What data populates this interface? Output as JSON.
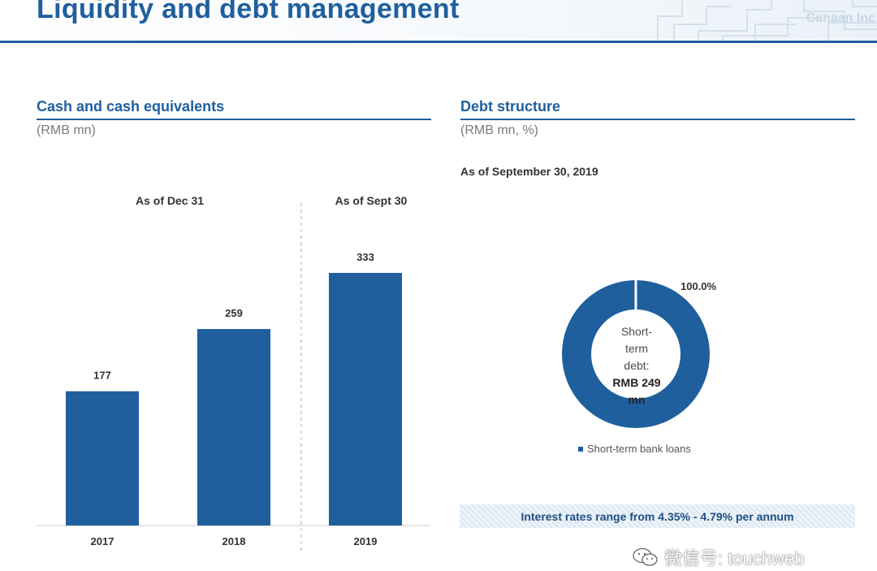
{
  "header": {
    "title": "Liquidity and debt management",
    "logo_text": "Canaan Inc",
    "accent_color": "#1f5f9e"
  },
  "left": {
    "title": "Cash and cash equivalents",
    "unit": "(RMB mn)",
    "group_dec": "As of Dec 31",
    "group_sep": "As of Sept 30"
  },
  "right": {
    "title": "Debt structure",
    "unit": "(RMB mn, %)",
    "as_of": "As of September 30, 2019",
    "center_line1": "Short-term",
    "center_line2": "debt:",
    "center_line3": "RMB 249",
    "center_line4": "mn",
    "note": "Interest rates range from 4.35% - 4.79% per annum"
  },
  "watermark": {
    "text": "微信号: touchweb",
    "icon": "wechat-icon"
  },
  "chart_data": [
    {
      "type": "bar",
      "title": "Cash and cash equivalents",
      "categories": [
        "2017",
        "2018",
        "2019"
      ],
      "values": [
        177,
        259,
        333
      ],
      "color": "#1f5f9e",
      "data_labels": [
        "177",
        "259",
        "333"
      ],
      "ylim": [
        0,
        333
      ],
      "grid": false
    },
    {
      "type": "pie",
      "title": "Debt structure",
      "categories": [
        "Short-term bank loans"
      ],
      "values": [
        100.0
      ],
      "value_labels": [
        "100.0%"
      ],
      "colors": [
        "#1f5f9e"
      ],
      "legend_position": "bottom"
    }
  ]
}
